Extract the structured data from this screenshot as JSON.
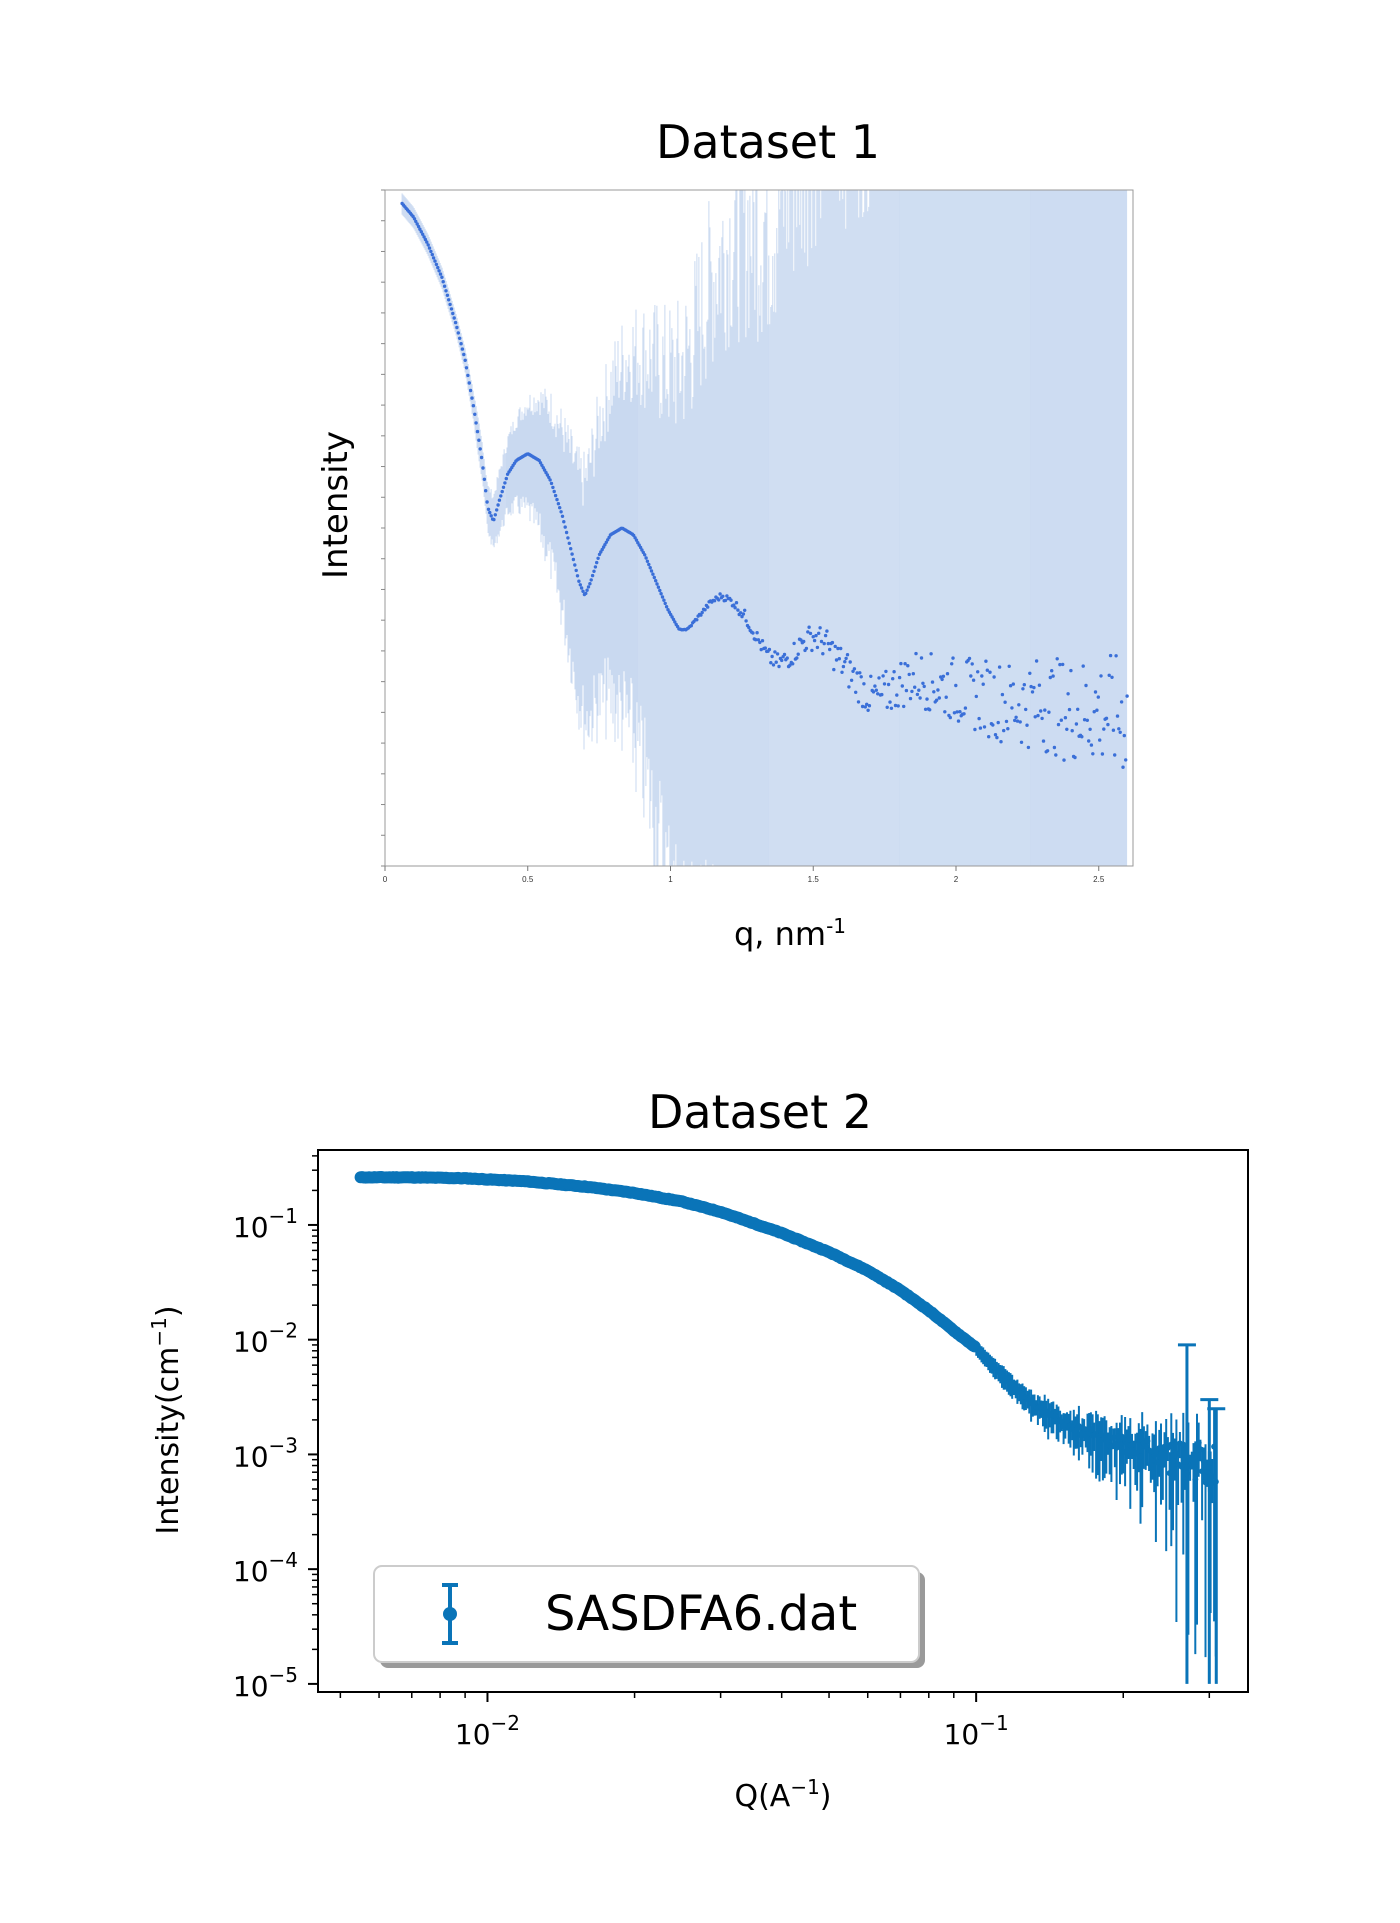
{
  "chart_data": [
    {
      "type": "scatter",
      "title": "Dataset 1",
      "xlabel": "q, nm",
      "xlabel_sup": "-1",
      "ylabel": "Intensity",
      "xlim": [
        0,
        2.62
      ],
      "yscale": "log",
      "grid": false,
      "x_ticks": [
        "0",
        "0.5",
        "1",
        "1.5",
        "2",
        "2.5"
      ],
      "x_tick_values": [
        0,
        0.5,
        1,
        1.5,
        2,
        2.5
      ],
      "y_tick_labels_shown": false,
      "error_band_color": "#c9d9f0",
      "point_color": "#3a6fd8",
      "series": [
        {
          "x": [
            0.06,
            0.1,
            0.15,
            0.2,
            0.25,
            0.28,
            0.31,
            0.34,
            0.36,
            0.38,
            0.4,
            0.43,
            0.46,
            0.5,
            0.54,
            0.58,
            0.62,
            0.65,
            0.68,
            0.7,
            0.72,
            0.75,
            0.79,
            0.83,
            0.87,
            0.91,
            0.95,
            0.99,
            1.03,
            1.06,
            1.1,
            1.14,
            1.18,
            1.22,
            1.26,
            1.3,
            1.34,
            1.38,
            1.42,
            1.46,
            1.5,
            1.54,
            1.58,
            1.62,
            1.66,
            1.7,
            1.74,
            1.8,
            1.86,
            1.92,
            2.0,
            2.1,
            2.2,
            2.3,
            2.4,
            2.5,
            2.6
          ],
          "y": [
            0.98,
            0.96,
            0.92,
            0.87,
            0.8,
            0.75,
            0.68,
            0.6,
            0.53,
            0.51,
            0.54,
            0.58,
            0.6,
            0.61,
            0.6,
            0.57,
            0.52,
            0.47,
            0.42,
            0.4,
            0.42,
            0.46,
            0.49,
            0.5,
            0.49,
            0.46,
            0.42,
            0.38,
            0.35,
            0.35,
            0.37,
            0.39,
            0.4,
            0.39,
            0.37,
            0.34,
            0.31,
            0.3,
            0.31,
            0.33,
            0.34,
            0.33,
            0.31,
            0.29,
            0.27,
            0.25,
            0.25,
            0.27,
            0.28,
            0.27,
            0.26,
            0.25,
            0.24,
            0.24,
            0.23,
            0.23,
            0.22
          ]
        }
      ]
    },
    {
      "type": "scatter",
      "title": "Dataset 2",
      "xlabel": "Q(A",
      "xlabel_sup": "−1",
      "xlabel_tail": ")",
      "ylabel": "Intensity(cm",
      "ylabel_sup": "−1",
      "ylabel_tail": ")",
      "xscale": "log",
      "yscale": "log",
      "xlim": [
        0.0045,
        0.36
      ],
      "ylim": [
        8.5e-06,
        0.45
      ],
      "x_ticks": [
        {
          "base": "10",
          "exp": "−2",
          "value": 0.01
        },
        {
          "base": "10",
          "exp": "−1",
          "value": 0.1
        }
      ],
      "y_ticks": [
        {
          "base": "10",
          "exp": "−1",
          "value": 0.1
        },
        {
          "base": "10",
          "exp": "−2",
          "value": 0.01
        },
        {
          "base": "10",
          "exp": "−3",
          "value": 0.001
        },
        {
          "base": "10",
          "exp": "−4",
          "value": 0.0001
        },
        {
          "base": "10",
          "exp": "−5",
          "value": 1e-05
        }
      ],
      "grid": false,
      "legend": {
        "placement": "lower-left"
      },
      "series_color": "#0a74b8",
      "series": [
        {
          "name": "SASDFA6.dat",
          "x": [
            0.0055,
            0.007,
            0.009,
            0.012,
            0.016,
            0.02,
            0.025,
            0.03,
            0.04,
            0.05,
            0.06,
            0.07,
            0.08,
            0.09,
            0.1,
            0.11,
            0.12,
            0.13,
            0.15,
            0.17,
            0.2,
            0.23,
            0.26,
            0.29,
            0.31
          ],
          "y": [
            0.26,
            0.26,
            0.255,
            0.24,
            0.215,
            0.19,
            0.16,
            0.13,
            0.085,
            0.058,
            0.04,
            0.027,
            0.018,
            0.012,
            0.0085,
            0.0055,
            0.0038,
            0.0028,
            0.0019,
            0.0015,
            0.0012,
            0.001,
            0.0009,
            0.00085,
            0.0008
          ]
        }
      ]
    }
  ]
}
